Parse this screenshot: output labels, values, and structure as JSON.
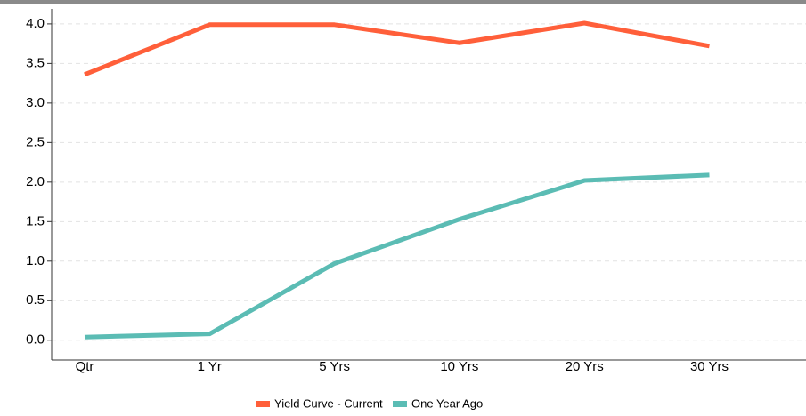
{
  "chart_data": {
    "type": "line",
    "categories": [
      "Qtr",
      "1 Yr",
      "5 Yrs",
      "10 Yrs",
      "20 Yrs",
      "30 Yrs"
    ],
    "series": [
      {
        "name": "Yield Curve - Current",
        "color": "#ff5f3a",
        "values": [
          3.36,
          3.99,
          3.99,
          3.76,
          4.01,
          3.72
        ]
      },
      {
        "name": "One Year Ago",
        "color": "#5bbcb4",
        "values": [
          0.04,
          0.08,
          0.97,
          1.53,
          2.02,
          2.09
        ]
      }
    ],
    "ylim": [
      -0.25,
      4.19
    ],
    "yticks": [
      {
        "value": 0,
        "label": "0.0"
      },
      {
        "value": 0.5,
        "label": "0.5"
      },
      {
        "value": 1,
        "label": "1.0"
      },
      {
        "value": 1.5,
        "label": "1.5"
      },
      {
        "value": 2,
        "label": "2.0"
      },
      {
        "value": 2.5,
        "label": "2.5"
      },
      {
        "value": 3,
        "label": "3.0"
      },
      {
        "value": 3.5,
        "label": "3.5"
      },
      {
        "value": 4,
        "label": "4.0"
      }
    ],
    "grid": true
  }
}
